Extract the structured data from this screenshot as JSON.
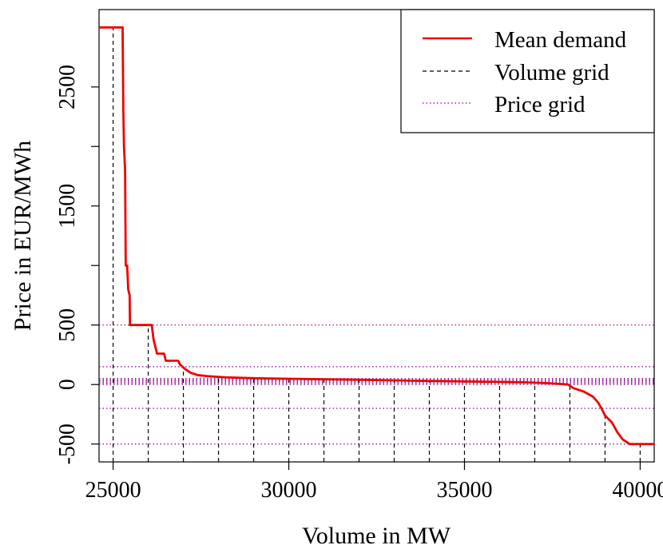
{
  "chart_data": {
    "type": "line",
    "title": "",
    "xlabel": "Volume in MW",
    "ylabel": "Price in EUR/MWh",
    "xlim": [
      24600,
      40400
    ],
    "ylim": [
      -650,
      3150
    ],
    "x_ticks": [
      25000,
      30000,
      35000,
      40000
    ],
    "x_tick_labels": [
      "25000",
      "30000",
      "35000",
      "40000"
    ],
    "y_ticks": [
      -500,
      0,
      500,
      1500,
      2500
    ],
    "y_tick_labels": [
      "-500",
      "0",
      "500",
      "1500",
      "2500"
    ],
    "y_minor_ticks": [
      1000,
      2000
    ],
    "legend": {
      "position": "top-right",
      "entries": [
        {
          "label": "Mean demand",
          "color": "#ee0000",
          "style": "solid"
        },
        {
          "label": "Volume grid",
          "color": "#000000",
          "style": "dashed"
        },
        {
          "label": "Price grid",
          "color": "#8b008b",
          "style": "dotted"
        }
      ]
    },
    "series": [
      {
        "name": "Mean demand",
        "color": "#ee0000",
        "points": [
          [
            24600,
            3000
          ],
          [
            25270,
            3000
          ],
          [
            25290,
            2300
          ],
          [
            25310,
            2000
          ],
          [
            25340,
            1800
          ],
          [
            25360,
            1000
          ],
          [
            25400,
            1000
          ],
          [
            25430,
            800
          ],
          [
            25470,
            750
          ],
          [
            25480,
            500
          ],
          [
            26100,
            500
          ],
          [
            26150,
            380
          ],
          [
            26250,
            260
          ],
          [
            26450,
            260
          ],
          [
            26500,
            200
          ],
          [
            26850,
            200
          ],
          [
            26900,
            170
          ],
          [
            27050,
            130
          ],
          [
            27200,
            100
          ],
          [
            27400,
            80
          ],
          [
            27700,
            70
          ],
          [
            28200,
            60
          ],
          [
            29000,
            53
          ],
          [
            30000,
            48
          ],
          [
            31000,
            44
          ],
          [
            32000,
            40
          ],
          [
            33000,
            35
          ],
          [
            34000,
            30
          ],
          [
            35000,
            26
          ],
          [
            36000,
            22
          ],
          [
            36800,
            18
          ],
          [
            37300,
            12
          ],
          [
            37700,
            5
          ],
          [
            37950,
            0
          ],
          [
            38100,
            -30
          ],
          [
            38400,
            -60
          ],
          [
            38650,
            -100
          ],
          [
            38800,
            -150
          ],
          [
            38900,
            -200
          ],
          [
            39000,
            -260
          ],
          [
            39200,
            -320
          ],
          [
            39350,
            -400
          ],
          [
            39500,
            -460
          ],
          [
            39700,
            -500
          ],
          [
            40400,
            -500
          ]
        ]
      }
    ],
    "volume_grid": [
      25000,
      26000,
      27000,
      28000,
      29000,
      30000,
      31000,
      32000,
      33000,
      34000,
      35000,
      36000,
      37000,
      38000,
      39000,
      40000
    ],
    "price_grid": [
      -500,
      -200,
      0,
      10,
      20,
      30,
      40,
      50,
      150,
      500
    ]
  }
}
